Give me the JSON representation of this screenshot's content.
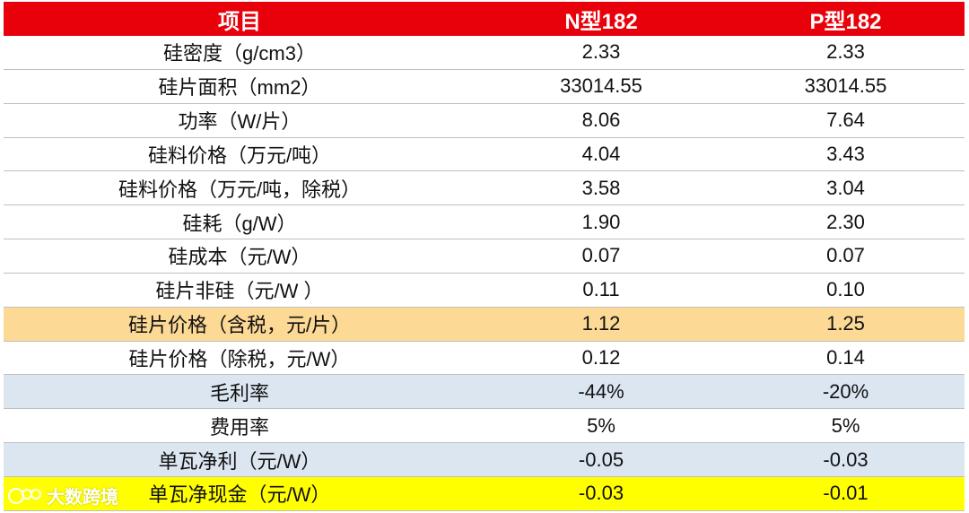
{
  "table": {
    "header": [
      "项目",
      "N型182",
      "P型182"
    ],
    "rows": [
      [
        "硅密度（g/cm3）",
        "2.33",
        "2.33"
      ],
      [
        "硅片面积（mm2）",
        "33014.55",
        "33014.55"
      ],
      [
        "功率（W/片）",
        "8.06",
        "7.64"
      ],
      [
        "硅料价格（万元/吨）",
        "4.04",
        "3.43"
      ],
      [
        "硅料价格（万元/吨，除税）",
        "3.58",
        "3.04"
      ],
      [
        "硅耗（g/W）",
        "1.90",
        "2.30"
      ],
      [
        "硅成本（元/W）",
        "0.07",
        "0.07"
      ],
      [
        "硅片非硅（元/W ）",
        "0.11",
        "0.10"
      ],
      [
        "硅片价格（含税，元/片）",
        "1.12",
        "1.25"
      ],
      [
        "硅片价格（除税，元/W）",
        "0.12",
        "0.14"
      ],
      [
        "毛利率",
        "-44%",
        "-20%"
      ],
      [
        "费用率",
        "5%",
        "5%"
      ],
      [
        "单瓦净利（元/W）",
        "-0.05",
        "-0.03"
      ],
      [
        "单瓦净现金（元/W）",
        "-0.03",
        "-0.01"
      ]
    ]
  },
  "watermark": "大数跨境"
}
